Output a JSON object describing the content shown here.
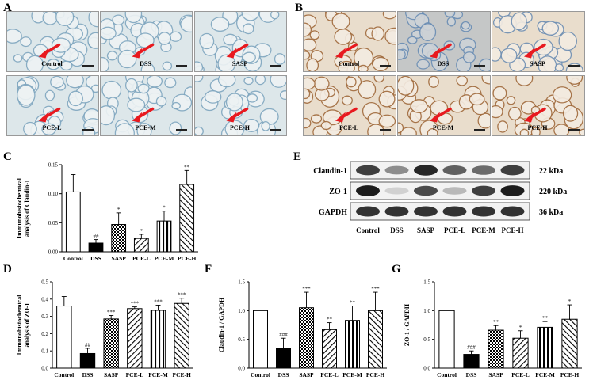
{
  "panels": {
    "A": {
      "label": "A",
      "images": [
        "Control",
        "DSS",
        "SASP",
        "PCE-L",
        "PCE-M",
        "PCE-H"
      ]
    },
    "B": {
      "label": "B",
      "images": [
        "Control",
        "DSS",
        "SASP",
        "PCE-L",
        "PCE-M",
        "PCE-H"
      ]
    },
    "E": {
      "label": "E",
      "rows": [
        {
          "name": "Claudin-1",
          "kda": "22 kDa"
        },
        {
          "name": "ZO-1",
          "kda": "220 kDa"
        },
        {
          "name": "GAPDH",
          "kda": "36 kDa"
        }
      ],
      "lanes": [
        "Control",
        "DSS",
        "SASP",
        "PCE-L",
        "PCE-M",
        "PCE-H"
      ]
    }
  },
  "colors": {
    "arrow": "#e8191f",
    "he_blue": "#a9c6d8",
    "ihc_brown": "#b8885a"
  },
  "chart_data": [
    {
      "id": "C",
      "label": "C",
      "type": "bar",
      "categories": [
        "Control",
        "DSS",
        "SASP",
        "PCE-L",
        "PCE-M",
        "PCE-H"
      ],
      "values": [
        0.103,
        0.015,
        0.047,
        0.023,
        0.053,
        0.116
      ],
      "errors": [
        0.03,
        0.006,
        0.02,
        0.007,
        0.017,
        0.024
      ],
      "sig": [
        "",
        "##",
        "*",
        "*",
        "*",
        "**"
      ],
      "ylabel": "Immunohistochemical analysis of Claudin-1",
      "ylim": [
        0,
        0.15
      ],
      "yticks": [
        "0.00",
        "0.05",
        "0.10",
        "0.15"
      ]
    },
    {
      "id": "D",
      "label": "D",
      "type": "bar",
      "categories": [
        "Control",
        "DSS",
        "SASP",
        "PCE-L",
        "PCE-M",
        "PCE-H"
      ],
      "values": [
        0.36,
        0.085,
        0.285,
        0.345,
        0.335,
        0.375
      ],
      "errors": [
        0.055,
        0.03,
        0.02,
        0.01,
        0.03,
        0.03
      ],
      "sig": [
        "",
        "##",
        "***",
        "***",
        "***",
        "***"
      ],
      "ylabel": "Immunohistochemical analysis of ZO-1",
      "ylim": [
        0,
        0.5
      ],
      "yticks": [
        "0.0",
        "0.1",
        "0.2",
        "0.3",
        "0.4",
        "0.5"
      ]
    },
    {
      "id": "F",
      "label": "F",
      "type": "bar",
      "categories": [
        "Control",
        "DSS",
        "SASP",
        "PCE-L",
        "PCE-M",
        "PCE-H"
      ],
      "values": [
        1.0,
        0.34,
        1.05,
        0.67,
        0.83,
        1.0
      ],
      "errors": [
        0.0,
        0.18,
        0.27,
        0.12,
        0.25,
        0.32
      ],
      "sig": [
        "",
        "###",
        "***",
        "**",
        "**",
        "***"
      ],
      "ylabel": "Claudin-1 / GAPDH",
      "ylim": [
        0,
        1.5
      ],
      "yticks": [
        "0.0",
        "0.5",
        "1.0",
        "1.5"
      ]
    },
    {
      "id": "G",
      "label": "G",
      "type": "bar",
      "categories": [
        "Control",
        "DSS",
        "SASP",
        "PCE-L",
        "PCE-M",
        "PCE-H"
      ],
      "values": [
        1.0,
        0.24,
        0.66,
        0.52,
        0.71,
        0.85
      ],
      "errors": [
        0.0,
        0.06,
        0.08,
        0.13,
        0.1,
        0.25
      ],
      "sig": [
        "",
        "###",
        "**",
        "*",
        "**",
        "*"
      ],
      "ylabel": "ZO-1 / GAPDH",
      "ylim": [
        0,
        1.5
      ],
      "yticks": [
        "0.0",
        "0.5",
        "1.0",
        "1.5"
      ]
    }
  ]
}
